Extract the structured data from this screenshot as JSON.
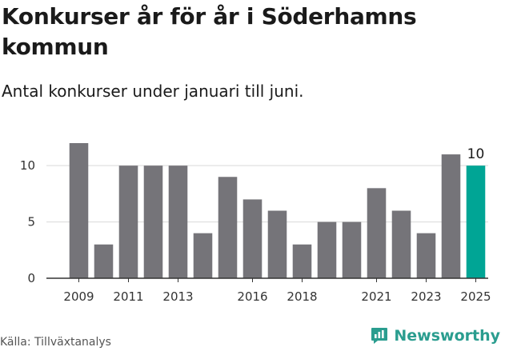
{
  "title": "Konkurser år för år i Söderhamns kommun",
  "subtitle": "Antal konkurser under januari till juni.",
  "source": "Källa: Tillväxtanalys",
  "brand": {
    "name": "Newsworthy",
    "icon": "newsworthy-logo-icon",
    "color": "#2a9d8f"
  },
  "colors": {
    "bar": "#757479",
    "highlight": "#00a595",
    "grid": "#d9d9d9",
    "axis": "#333333"
  },
  "chart_data": {
    "type": "bar",
    "categories": [
      "2009",
      "2010",
      "2011",
      "2012",
      "2013",
      "2014",
      "2015",
      "2016",
      "2017",
      "2018",
      "2019",
      "2020",
      "2021",
      "2022",
      "2023",
      "2024",
      "2025"
    ],
    "values": [
      12,
      3,
      10,
      10,
      10,
      4,
      9,
      7,
      6,
      3,
      5,
      5,
      8,
      6,
      4,
      11,
      10
    ],
    "highlight_category": "2025",
    "data_labels": [
      {
        "category": "2025",
        "text": "10"
      }
    ],
    "x_tick_labels": [
      "2009",
      "2011",
      "2013",
      "2016",
      "2018",
      "2021",
      "2023",
      "2025"
    ],
    "y_ticks": [
      0,
      5,
      10
    ],
    "ylim": [
      0,
      12
    ],
    "grid": "horizontal",
    "xlabel": "",
    "ylabel": ""
  }
}
